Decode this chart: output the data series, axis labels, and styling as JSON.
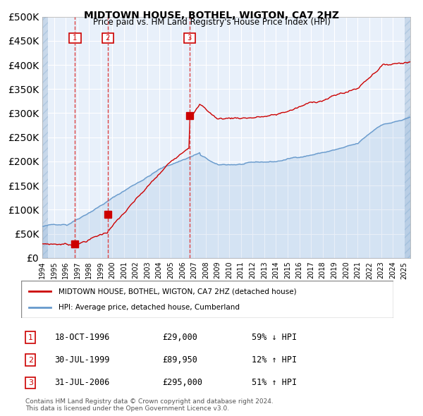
{
  "title": "MIDTOWN HOUSE, BOTHEL, WIGTON, CA7 2HZ",
  "subtitle": "Price paid vs. HM Land Registry's House Price Index (HPI)",
  "ylabel": "",
  "ylim": [
    0,
    500000
  ],
  "yticks": [
    0,
    50000,
    100000,
    150000,
    200000,
    250000,
    300000,
    350000,
    400000,
    450000,
    500000
  ],
  "xlim_start": 1994.0,
  "xlim_end": 2025.5,
  "bg_color": "#dce9f5",
  "plot_bg": "#e8f0fa",
  "grid_color": "#ffffff",
  "hatch_color": "#c8d8ea",
  "red_line_color": "#cc0000",
  "blue_line_color": "#6699cc",
  "sale_marker_color": "#cc0000",
  "dashed_line_color": "#dd4444",
  "transaction_box_color": "#cc0000",
  "transactions": [
    {
      "num": 1,
      "date": "18-OCT-1996",
      "price": 29000,
      "year": 1996.8,
      "hpi_note": "59% ↓ HPI"
    },
    {
      "num": 2,
      "date": "30-JUL-1999",
      "price": 89950,
      "year": 1999.6,
      "hpi_note": "12% ↑ HPI"
    },
    {
      "num": 3,
      "date": "31-JUL-2006",
      "price": 295000,
      "year": 2006.6,
      "hpi_note": "51% ↑ HPI"
    }
  ],
  "legend_line1": "MIDTOWN HOUSE, BOTHEL, WIGTON, CA7 2HZ (detached house)",
  "legend_line2": "HPI: Average price, detached house, Cumberland",
  "footnote1": "Contains HM Land Registry data © Crown copyright and database right 2024.",
  "footnote2": "This data is licensed under the Open Government Licence v3.0."
}
